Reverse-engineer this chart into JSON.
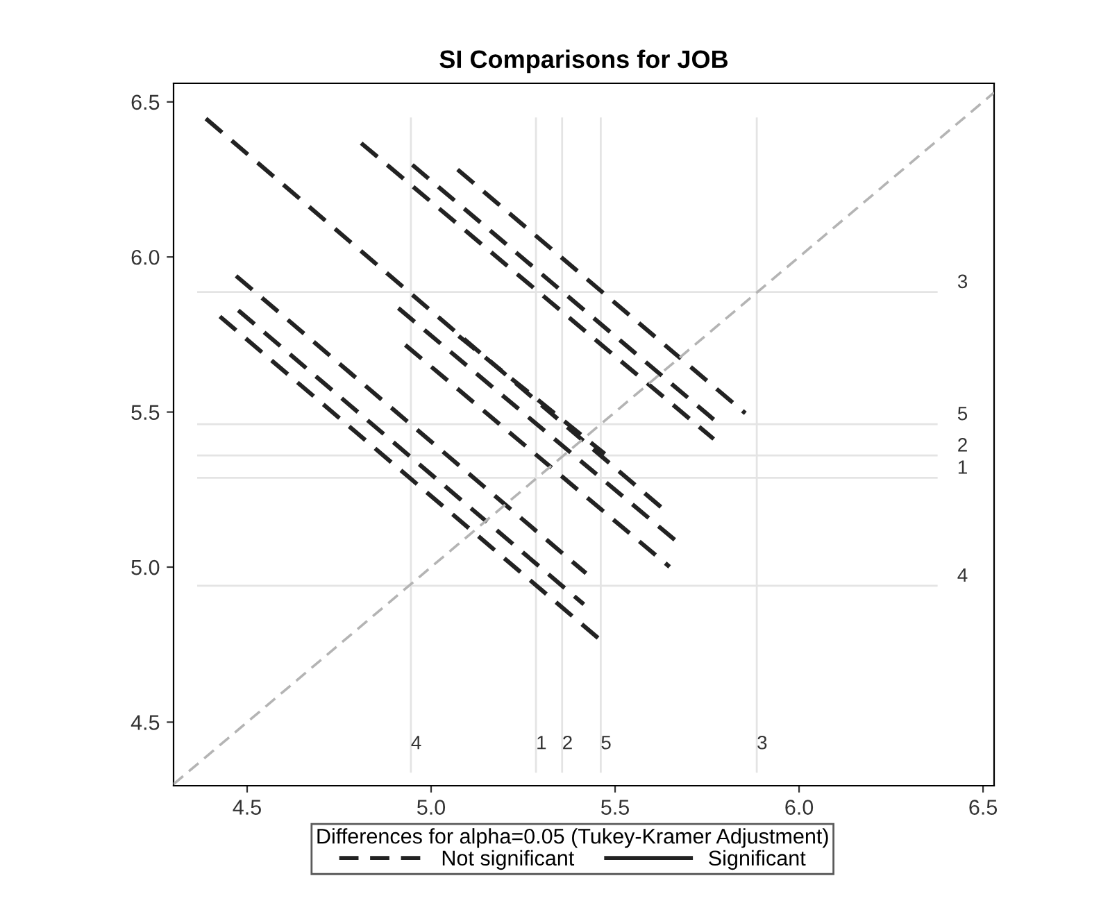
{
  "chart_data": {
    "type": "line",
    "title": "SI Comparisons for JOB",
    "legend_title": "Differences for alpha=0.05 (Tukey-Kramer Adjustment)",
    "legend": "bottom",
    "grid": false,
    "marker": "none",
    "xlim": [
      4.3,
      6.53
    ],
    "ylim": [
      4.295,
      6.56
    ],
    "xticks": [
      4.5,
      {
        "value": 5,
        "label": "5.0"
      },
      5.5,
      {
        "value": 6,
        "label": "6.0"
      },
      6.5
    ],
    "yticks": [
      4.5,
      {
        "value": 5,
        "label": "5.0"
      },
      5.5,
      {
        "value": 6,
        "label": "6.0"
      },
      6.5
    ],
    "ref_lines": [
      {
        "axis": "x",
        "value": 4.945,
        "color": "#e4e4e4"
      },
      {
        "axis": "x",
        "value": 5.285,
        "color": "#e4e4e4"
      },
      {
        "axis": "x",
        "value": 5.356,
        "color": "#e4e4e4"
      },
      {
        "axis": "x",
        "value": 5.461,
        "color": "#e4e4e4"
      },
      {
        "axis": "x",
        "value": 5.885,
        "color": "#e4e4e4"
      },
      {
        "axis": "y",
        "value": 5.887,
        "color": "#e4e4e4"
      },
      {
        "axis": "y",
        "value": 5.461,
        "color": "#e4e4e4"
      },
      {
        "axis": "y",
        "value": 5.36,
        "color": "#e4e4e4"
      },
      {
        "axis": "y",
        "value": 5.288,
        "color": "#e4e4e4"
      },
      {
        "axis": "y",
        "value": 4.94,
        "color": "#e4e4e4"
      }
    ],
    "annotations": [
      {
        "text": "4",
        "x": 4.945,
        "y": 4.4
      },
      {
        "text": "1",
        "x": 5.285,
        "y": 4.4
      },
      {
        "text": "2",
        "x": 5.356,
        "y": 4.4
      },
      {
        "text": "5",
        "x": 5.461,
        "y": 4.4
      },
      {
        "text": "3",
        "x": 5.885,
        "y": 4.4
      },
      "3",
      "5",
      "2",
      "1",
      "4"
    ],
    "series": [
      {
        "name": "Not significant",
        "color": "#222222",
        "line_style": "dashed",
        "x": [
          4.388,
          5.638
        ],
        "values": [
          6.446,
          5.18
        ]
      },
      {
        "color": "#222222",
        "line_style": "dashed",
        "x": [
          4.81,
          5.768
        ],
        "values": [
          6.367,
          5.413
        ]
      },
      {
        "color": "#222222",
        "line_style": "dashed",
        "x": [
          4.949,
          5.774
        ],
        "values": [
          6.297,
          5.47
        ]
      },
      {
        "color": "#222222",
        "line_style": "dashed",
        "x": [
          5.072,
          5.854
        ],
        "values": [
          6.282,
          5.496
        ]
      },
      {
        "color": "#222222",
        "line_style": "dashed",
        "x": [
          4.911,
          5.664
        ],
        "values": [
          5.835,
          5.086
        ]
      },
      {
        "color": "#222222",
        "line_style": "dashed",
        "x": [
          4.93,
          5.648
        ],
        "values": [
          5.716,
          5.001
        ]
      },
      {
        "color": "#222222",
        "line_style": "dashed",
        "x": [
          5.075,
          5.472
        ],
        "values": [
          5.745,
          5.365
        ]
      },
      {
        "color": "#222222",
        "line_style": "dashed",
        "x": [
          4.47,
          5.421
        ],
        "values": [
          5.939,
          4.98
        ]
      },
      {
        "color": "#222222",
        "line_style": "dashed",
        "x": [
          4.476,
          5.415
        ],
        "values": [
          5.828,
          4.88
        ]
      },
      {
        "color": "#222222",
        "line_style": "dashed",
        "x": [
          4.426,
          5.461
        ],
        "values": [
          5.808,
          4.764
        ]
      },
      {
        "name": "Significant",
        "color": "#222222",
        "line_style": "solid"
      },
      {
        "color": "#b4b4b4",
        "line_style": "dashed",
        "x": [
          4.3,
          6.53
        ],
        "values": [
          4.3,
          6.53
        ]
      }
    ]
  }
}
